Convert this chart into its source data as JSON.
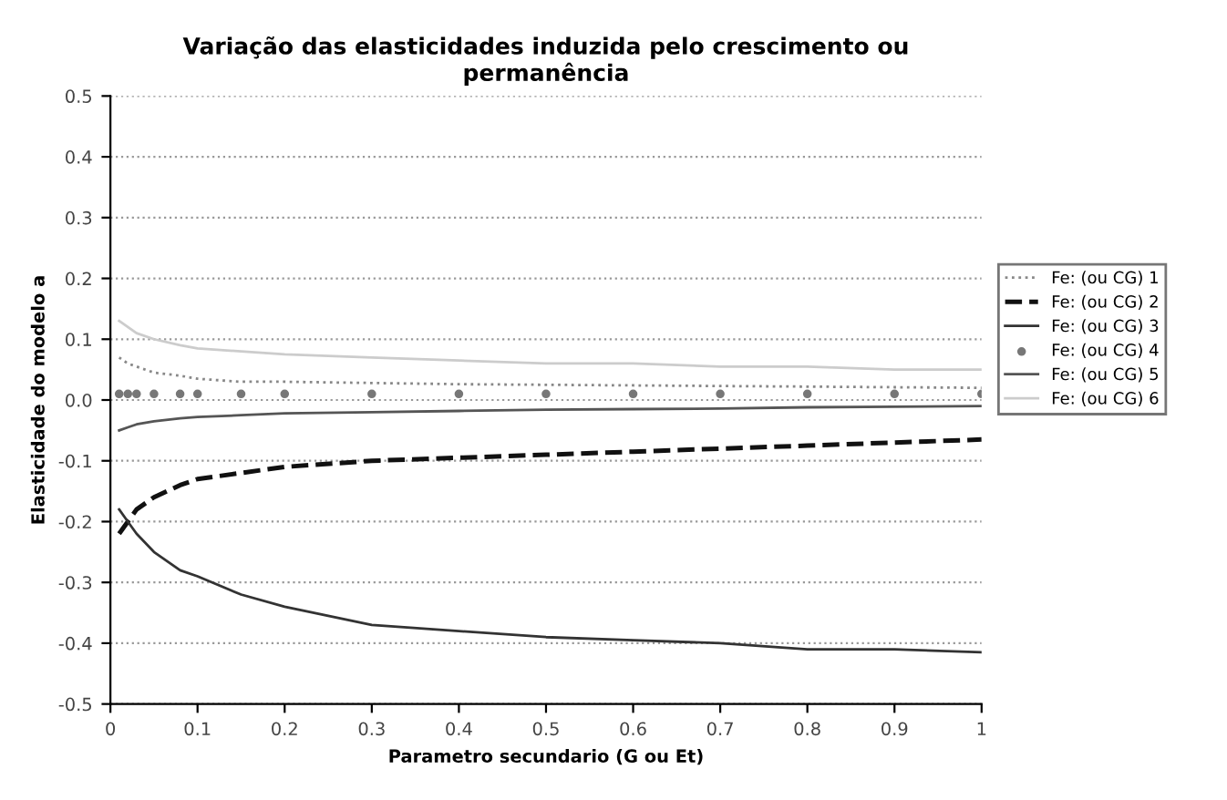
{
  "chart_data": {
    "type": "line",
    "title": "Variação das elasticidades induzida pelo crescimento ou\npermanência",
    "xlabel": "Parametro secundario (G ou Et)",
    "ylabel": "Elasticidade do modelo a",
    "x": [
      0.01,
      0.02,
      0.03,
      0.05,
      0.08,
      0.1,
      0.15,
      0.2,
      0.3,
      0.4,
      0.5,
      0.6,
      0.7,
      0.8,
      0.9,
      1
    ],
    "series": [
      {
        "name": "Fe: (ou CG) 1",
        "color": "#888888",
        "line_style": "dotted",
        "marker": "none",
        "values": [
          0.07,
          0.06,
          0.055,
          0.045,
          0.04,
          0.035,
          0.03,
          0.03,
          0.028,
          0.026,
          0.025,
          0.024,
          0.023,
          0.022,
          0.021,
          0.02
        ]
      },
      {
        "name": "Fe: (ou CG) 2",
        "color": "#111111",
        "line_style": "dashed",
        "marker": "none",
        "values": [
          -0.22,
          -0.2,
          -0.18,
          -0.16,
          -0.14,
          -0.13,
          -0.12,
          -0.11,
          -0.1,
          -0.095,
          -0.09,
          -0.085,
          -0.08,
          -0.075,
          -0.07,
          -0.065
        ]
      },
      {
        "name": "Fe: (ou CG) 3",
        "color": "#333333",
        "line_style": "solid",
        "marker": "none",
        "values": [
          -0.18,
          -0.2,
          -0.22,
          -0.25,
          -0.28,
          -0.29,
          -0.32,
          -0.34,
          -0.37,
          -0.38,
          -0.39,
          -0.395,
          -0.4,
          -0.41,
          -0.41,
          -0.415
        ]
      },
      {
        "name": "Fe: (ou CG) 4",
        "type": "scatter",
        "color": "#777777",
        "marker": "circle",
        "values": [
          0.01,
          0.01,
          0.01,
          0.01,
          0.01,
          0.01,
          0.01,
          0.01,
          0.01,
          0.01,
          0.01,
          0.01,
          0.01,
          0.01,
          0.01,
          0.01
        ]
      },
      {
        "name": "Fe: (ou CG) 5",
        "color": "#555555",
        "line_style": "solid",
        "marker": "none",
        "values": [
          -0.05,
          -0.045,
          -0.04,
          -0.035,
          -0.03,
          -0.028,
          -0.025,
          -0.022,
          -0.02,
          -0.018,
          -0.016,
          -0.015,
          -0.014,
          -0.012,
          -0.011,
          -0.01
        ]
      },
      {
        "name": "Fe: (ou CG) 6",
        "color": "#cccccc",
        "line_style": "solid",
        "marker": "none",
        "values": [
          0.13,
          0.12,
          0.11,
          0.1,
          0.09,
          0.085,
          0.08,
          0.075,
          0.07,
          0.065,
          0.06,
          0.06,
          0.055,
          0.055,
          0.05,
          0.05
        ]
      }
    ],
    "xlim": [
      0,
      1
    ],
    "xticks": [
      0,
      0.1,
      0.2,
      0.3,
      0.4,
      0.5,
      0.6,
      0.7,
      0.8,
      0.9,
      1
    ],
    "ylim": [
      -0.5,
      0.5
    ],
    "yticks": [
      -0.5,
      -0.4,
      -0.3,
      -0.2,
      -0.1,
      {
        "value": 0,
        "label": "0.0"
      },
      0.1,
      0.2,
      0.3,
      0.4,
      0.5
    ],
    "grid": "y",
    "legend": "right"
  }
}
